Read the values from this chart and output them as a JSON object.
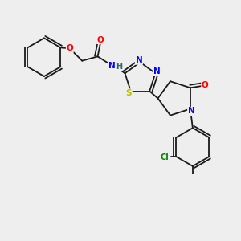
{
  "bg_color": "#eeeeee",
  "bond_color": "#1a1a1a",
  "atom_colors": {
    "O": "#ff0000",
    "N": "#0000ff",
    "S": "#bbbb00",
    "Cl": "#008800",
    "H": "#336666",
    "C": "#1a1a1a"
  },
  "figsize": [
    3.0,
    3.0
  ],
  "dpi": 100
}
